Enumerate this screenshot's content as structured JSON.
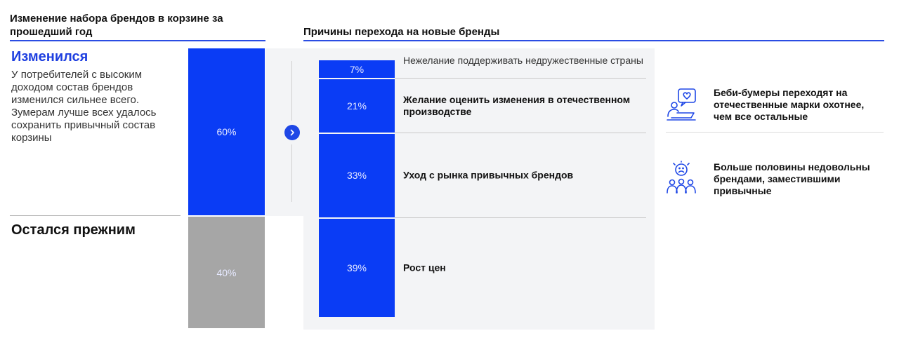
{
  "left_panel": {
    "header": "Изменение набора брендов в корзине за прошедший год",
    "changed": {
      "title": "Изменился",
      "description": "У потребителей с высоким доходом состав брендов изменился сильнее всего. Зумерам лучше всех удалось сохранить привычный состав корзины"
    },
    "unchanged": {
      "title": "Остался прежним"
    }
  },
  "right_panel": {
    "header": "Причины перехода на новые бренды"
  },
  "chart_data": [
    {
      "type": "bar",
      "stacked": true,
      "categories": [
        "Изменился",
        "Остался прежним"
      ],
      "values": [
        60,
        40
      ],
      "labels": [
        "60%",
        "40%"
      ],
      "colors": [
        "#0a3cf5",
        "#a6a6a6"
      ]
    },
    {
      "type": "bar",
      "stacked": true,
      "categories": [
        "Нежелание поддерживать недружественные страны",
        "Желание оценить изменения в отечественном производстве",
        "Уход с рынка привычных брендов",
        "Рост цен"
      ],
      "values": [
        7,
        21,
        33,
        39
      ],
      "labels": [
        "7%",
        "21%",
        "33%",
        "39%"
      ],
      "bold": [
        false,
        true,
        true,
        true
      ],
      "color": "#0a3cf5"
    }
  ],
  "side_notes": [
    {
      "icon": "person-heart-icon",
      "text": "Беби-бумеры переходят на отечественные марки охотнее, чем все остальные"
    },
    {
      "icon": "unhappy-group-icon",
      "text": "Больше половины недовольны брендами, заместившими привычные"
    }
  ],
  "colors": {
    "accent": "#0a3cf5",
    "gray": "#a6a6a6",
    "panel": "#f3f4f6"
  }
}
